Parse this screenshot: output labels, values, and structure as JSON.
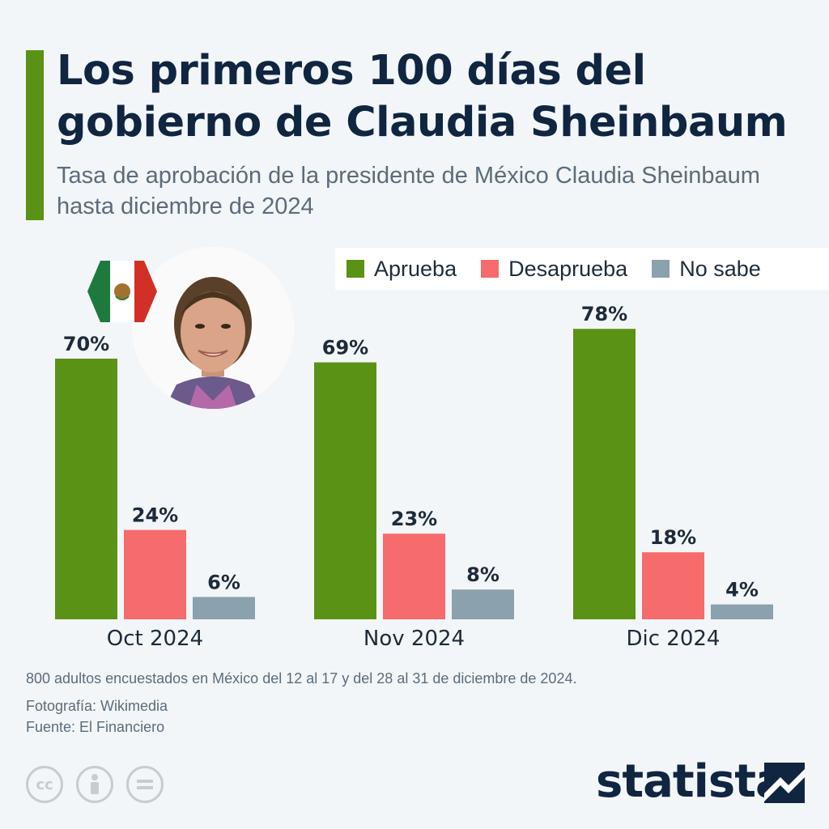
{
  "header": {
    "title": "Los primeros 100 días del gobierno de Claudia Sheinbaum",
    "subtitle": "Tasa de aprobación de la presidente de México Claudia Sheinbaum hasta diciembre de 2024"
  },
  "colors": {
    "accent": "#5a9216",
    "aprueba": "#5a9216",
    "desaprueba": "#f66b6b",
    "no_sabe": "#8ba1ad"
  },
  "legend": [
    {
      "label": "Aprueba",
      "color": "#5a9216"
    },
    {
      "label": "Desaprueba",
      "color": "#f66b6b"
    },
    {
      "label": "No sabe",
      "color": "#8ba1ad"
    }
  ],
  "chart_data": {
    "type": "bar",
    "categories": [
      "Oct 2024",
      "Nov 2024",
      "Dic 2024"
    ],
    "series": [
      {
        "name": "Aprueba",
        "values": [
          70,
          69,
          78
        ],
        "labels": [
          "70%",
          "69%",
          "78%"
        ]
      },
      {
        "name": "Desaprueba",
        "values": [
          24,
          23,
          18
        ],
        "labels": [
          "24%",
          "23%",
          "18%"
        ]
      },
      {
        "name": "No sabe",
        "values": [
          6,
          8,
          4
        ],
        "labels": [
          "6%",
          "8%",
          "4%"
        ]
      }
    ],
    "ylim": [
      0,
      100
    ],
    "grid": false,
    "legend_position": "top-right"
  },
  "notes": {
    "sample": "800 adultos encuestados en México del 12 al 17 y del 28 al 31 de diciembre de 2024.",
    "photo_credit": "Fotografía: Wikimedia",
    "source": "Fuente: El Financiero"
  },
  "license_icons": [
    "creative-commons-icon",
    "attribution-icon",
    "no-derivatives-icon"
  ],
  "brand": {
    "name": "statista"
  }
}
